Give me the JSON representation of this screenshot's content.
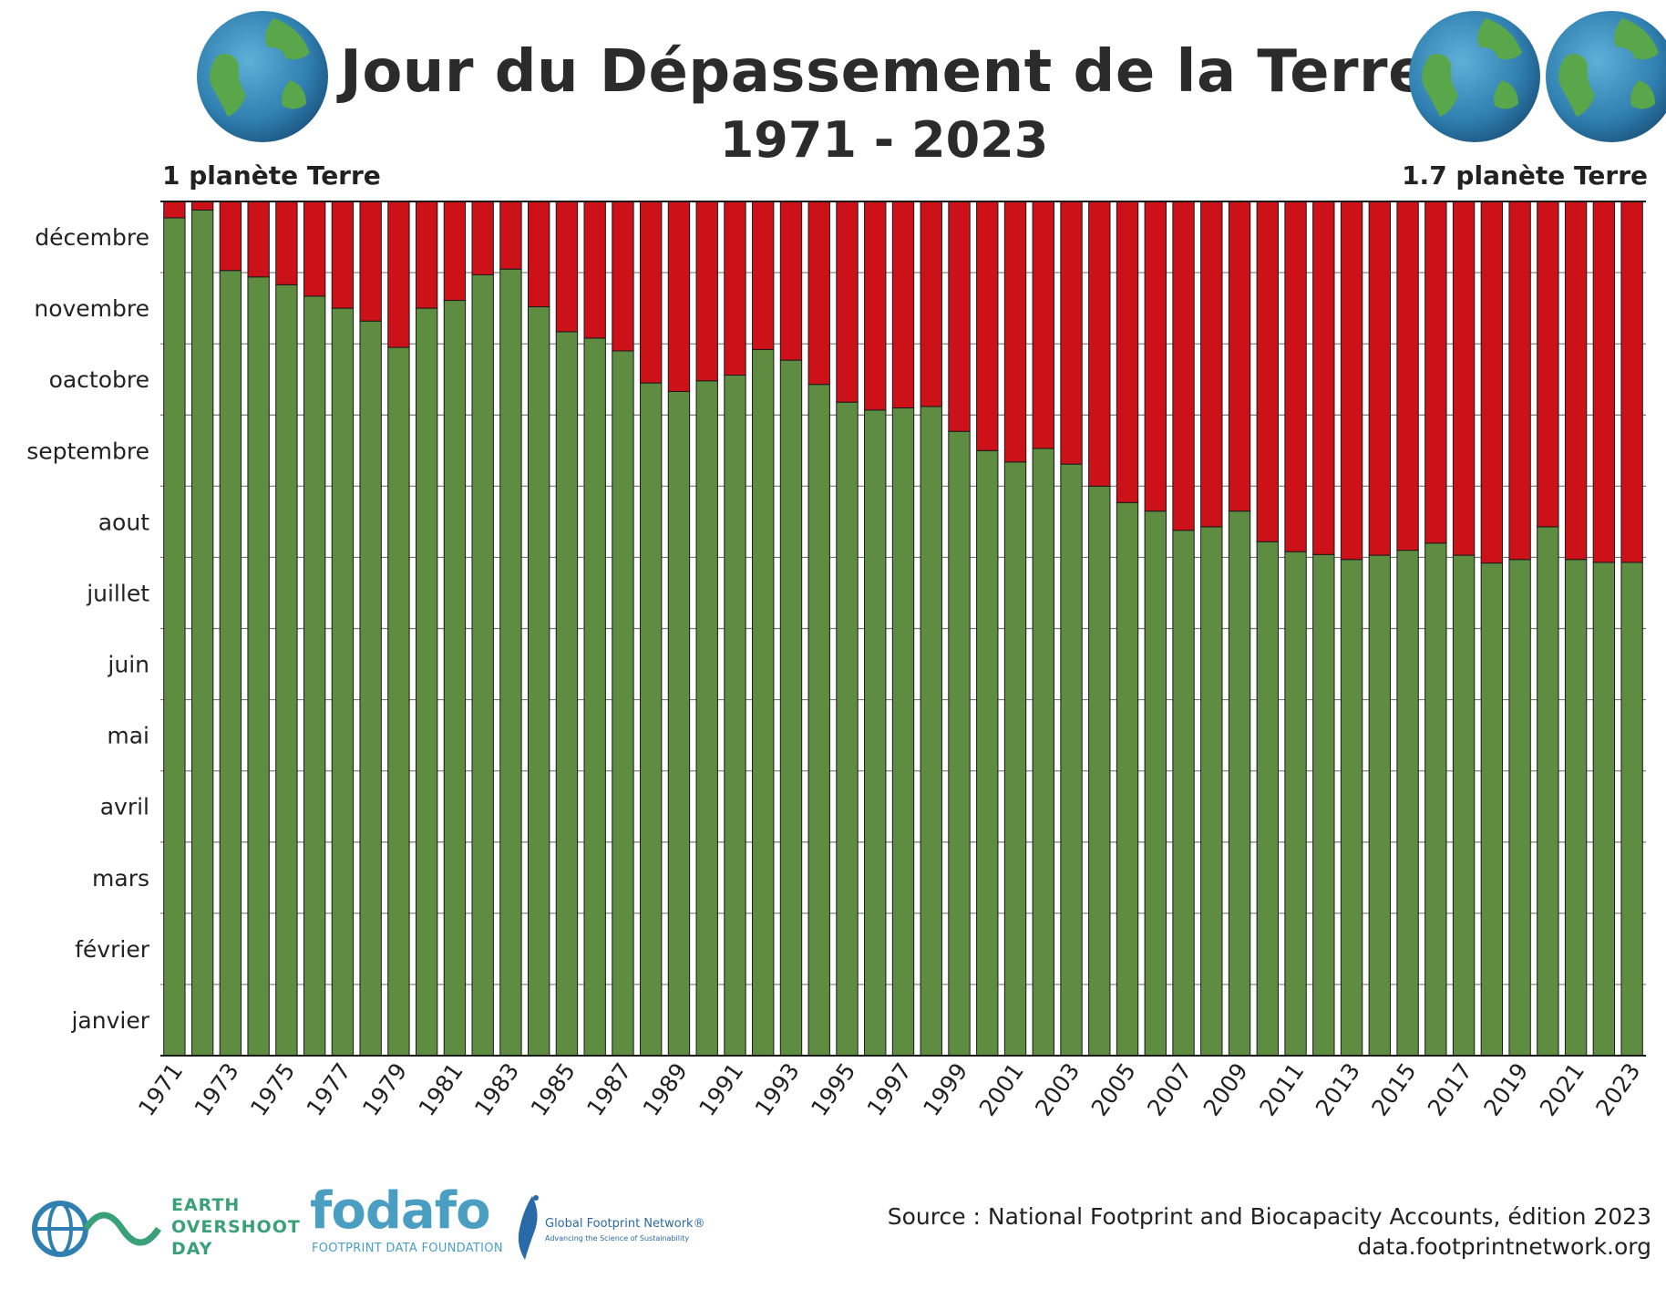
{
  "header": {
    "title": "Jour du Dépassement de la Terre",
    "subtitle": "1971 - 2023",
    "left_label": "1 planète Terre",
    "right_label": "1.7 planète Terre"
  },
  "footer": {
    "source_line1": "Source : National Footprint and Biocapacity Accounts, édition 2023",
    "source_line2": "data.footprintnetwork.org",
    "eod_line1": "EARTH",
    "eod_line2": "OVERSHOOT",
    "eod_line3": "DAY",
    "fodafo_word": "fodafo",
    "fodafo_sub": "FOOTPRINT DATA FOUNDATION",
    "gfn_name": "Global Footprint Network®",
    "gfn_tagline": "Advancing the Science of Sustainability"
  },
  "colors": {
    "green": "#5e8c41",
    "red": "#cc1118",
    "grid": "#777777",
    "title": "#2b2b2b",
    "globe_ocean": "#2f7fb0",
    "globe_land": "#5aa64a"
  },
  "icons": [
    "globe-icon",
    "globe-icon",
    "globe-icon",
    "earth-overshoot-day-logo",
    "fodafo-logo",
    "global-footprint-network-logo"
  ],
  "chart_data": {
    "type": "bar",
    "stacked": true,
    "categories": [
      "1971",
      "1972",
      "1973",
      "1974",
      "1975",
      "1976",
      "1977",
      "1978",
      "1979",
      "1980",
      "1981",
      "1982",
      "1983",
      "1984",
      "1985",
      "1986",
      "1987",
      "1988",
      "1989",
      "1990",
      "1991",
      "1992",
      "1993",
      "1994",
      "1995",
      "1996",
      "1997",
      "1998",
      "1999",
      "2000",
      "2001",
      "2002",
      "2003",
      "2004",
      "2005",
      "2006",
      "2007",
      "2008",
      "2009",
      "2010",
      "2011",
      "2012",
      "2013",
      "2014",
      "2015",
      "2016",
      "2017",
      "2018",
      "2019",
      "2020",
      "2021",
      "2022",
      "2023"
    ],
    "x_tick_labels": [
      "1971",
      "1973",
      "1975",
      "1977",
      "1979",
      "1981",
      "1983",
      "1985",
      "1987",
      "1989",
      "1991",
      "1993",
      "1995",
      "1997",
      "1999",
      "2001",
      "2003",
      "2005",
      "2007",
      "2009",
      "2011",
      "2013",
      "2015",
      "2017",
      "2019",
      "2021",
      "2023"
    ],
    "y_tick_labels": [
      "janvier",
      "février",
      "mars",
      "avril",
      "mai",
      "juin",
      "juillet",
      "aout",
      "septembre",
      "oactobre",
      "novembre",
      "décembre"
    ],
    "ylim": [
      0,
      12
    ],
    "series": [
      {
        "color": "#5e8c41",
        "values": [
          11.77,
          11.88,
          11.03,
          10.94,
          10.83,
          10.67,
          10.5,
          10.32,
          9.95,
          10.5,
          10.61,
          10.97,
          11.05,
          10.52,
          10.17,
          10.08,
          9.9,
          9.45,
          9.33,
          9.48,
          9.56,
          9.92,
          9.77,
          9.43,
          9.18,
          9.07,
          9.1,
          9.12,
          8.77,
          8.5,
          8.34,
          8.53,
          8.31,
          8.0,
          7.77,
          7.65,
          7.38,
          7.43,
          7.65,
          7.22,
          7.08,
          7.04,
          6.97,
          7.03,
          7.1,
          7.2,
          7.03,
          6.92,
          6.97,
          7.43,
          6.97,
          6.93,
          6.93
        ]
      },
      {
        "color": "#cc1118",
        "values": [
          0.23,
          0.12,
          0.97,
          1.06,
          1.17,
          1.33,
          1.5,
          1.68,
          2.05,
          1.5,
          1.39,
          1.03,
          0.95,
          1.48,
          1.83,
          1.92,
          2.1,
          2.55,
          2.67,
          2.52,
          2.44,
          2.08,
          2.23,
          2.57,
          2.82,
          2.93,
          2.9,
          2.88,
          3.23,
          3.5,
          3.66,
          3.47,
          3.69,
          4.0,
          4.23,
          4.35,
          4.62,
          4.57,
          4.35,
          4.78,
          4.92,
          4.96,
          5.03,
          4.97,
          4.9,
          4.8,
          4.97,
          5.08,
          5.03,
          4.57,
          5.03,
          5.07,
          5.07
        ]
      }
    ],
    "legend": "none",
    "grid": true
  }
}
